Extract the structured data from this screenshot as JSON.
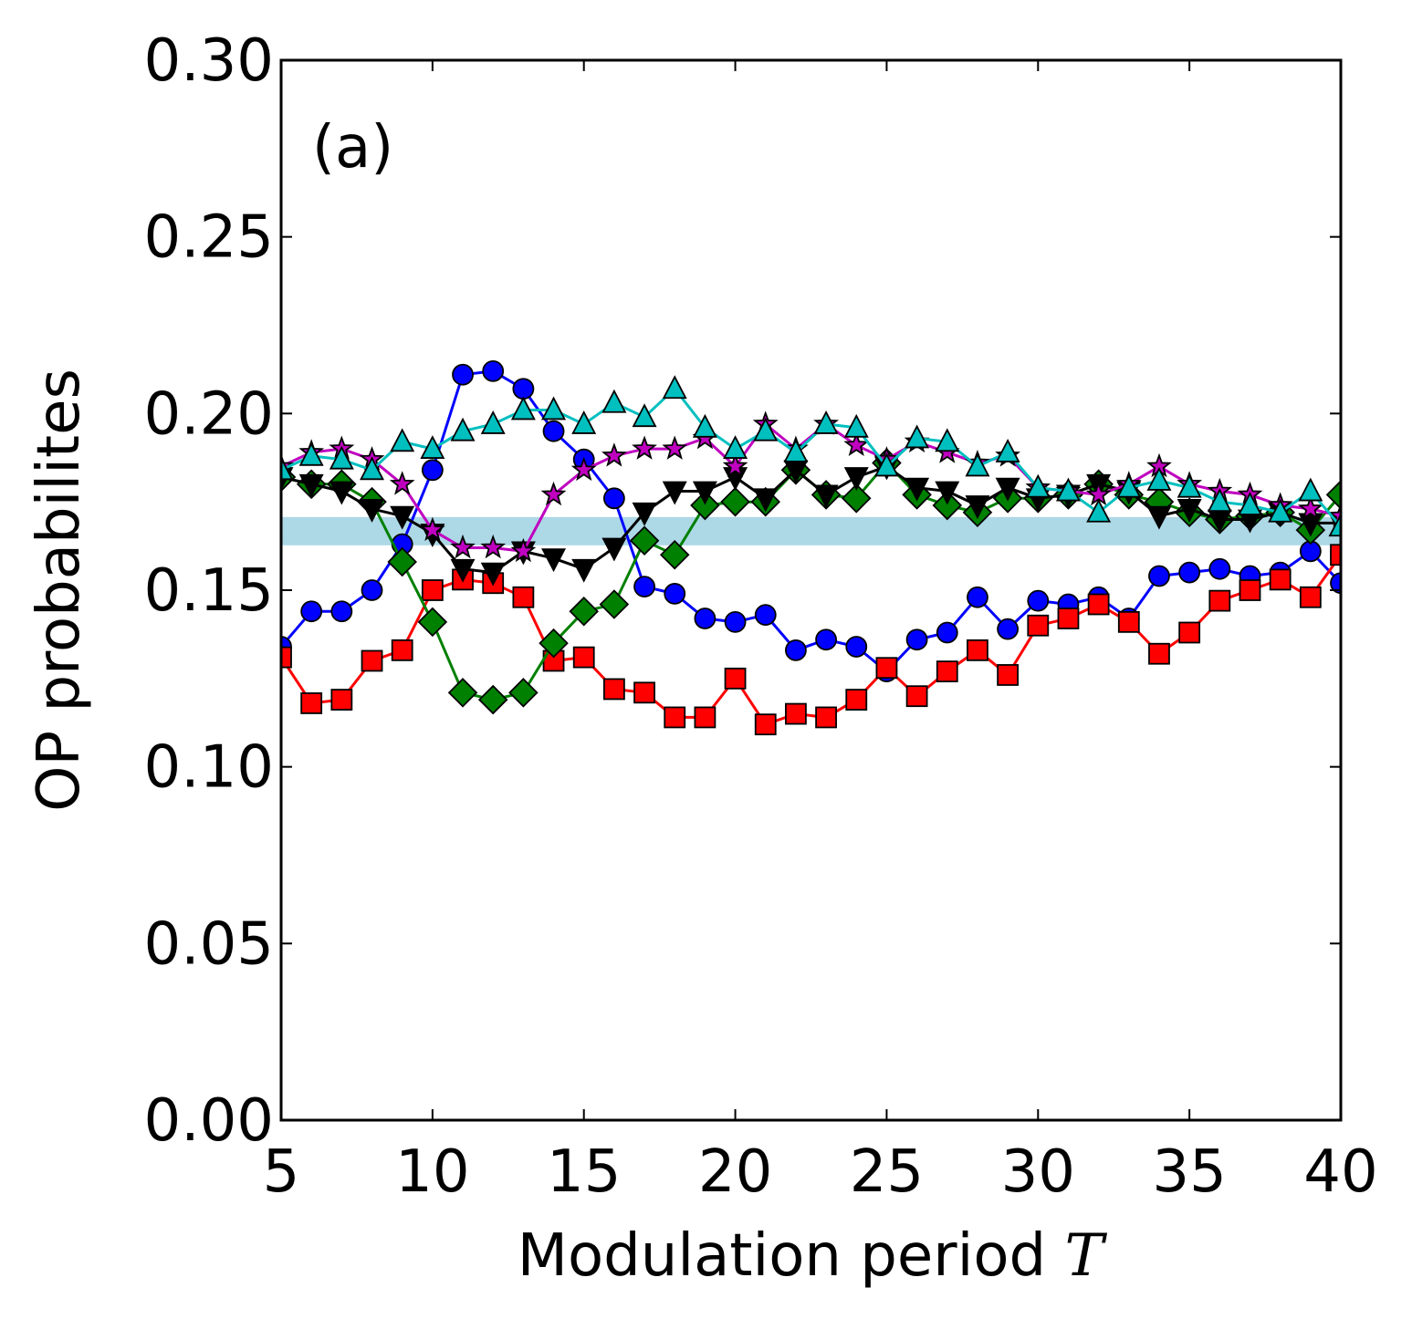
{
  "chart_data": {
    "type": "line",
    "panel_label": "(a)",
    "xlabel": "Modulation period",
    "xlabel_var": "T",
    "ylabel": "OP probabilites",
    "xlim": [
      5,
      40
    ],
    "ylim": [
      0,
      0.3
    ],
    "xticks": [
      5,
      10,
      15,
      20,
      25,
      30,
      35,
      40
    ],
    "xtick_labels": [
      "5",
      "10",
      "15",
      "20",
      "25",
      "30",
      "35",
      "40"
    ],
    "yticks": [
      0,
      0.05,
      0.1,
      0.15,
      0.2,
      0.25,
      0.3
    ],
    "ytick_labels": [
      "0.00",
      "0.05",
      "0.10",
      "0.15",
      "0.20",
      "0.25",
      "0.30"
    ],
    "grid": false,
    "band": {
      "ymin": 0.1627,
      "ymax": 0.1707,
      "color": "#add8e6"
    },
    "x": [
      5,
      6,
      7,
      8,
      9,
      10,
      11,
      12,
      13,
      14,
      15,
      16,
      17,
      18,
      19,
      20,
      21,
      22,
      23,
      24,
      25,
      26,
      27,
      28,
      29,
      30,
      31,
      32,
      33,
      34,
      35,
      36,
      37,
      38,
      39,
      40
    ],
    "series": [
      {
        "name": "blue-circle",
        "color": "#0000ff",
        "marker": "circle",
        "values": [
          0.134,
          0.144,
          0.144,
          0.15,
          0.163,
          0.184,
          0.211,
          0.212,
          0.207,
          0.195,
          0.187,
          0.176,
          0.151,
          0.149,
          0.142,
          0.141,
          0.143,
          0.133,
          0.136,
          0.134,
          0.127,
          0.136,
          0.138,
          0.148,
          0.139,
          0.147,
          0.146,
          0.148,
          0.142,
          0.154,
          0.155,
          0.156,
          0.154,
          0.155,
          0.161,
          0.152
        ]
      },
      {
        "name": "red-square",
        "color": "#ff0000",
        "marker": "square",
        "values": [
          0.131,
          0.118,
          0.119,
          0.13,
          0.133,
          0.15,
          0.153,
          0.152,
          0.148,
          0.13,
          0.131,
          0.122,
          0.121,
          0.114,
          0.114,
          0.125,
          0.112,
          0.115,
          0.114,
          0.119,
          0.128,
          0.12,
          0.127,
          0.133,
          0.126,
          0.14,
          0.142,
          0.146,
          0.141,
          0.132,
          0.138,
          0.147,
          0.15,
          0.153,
          0.148,
          0.16
        ]
      },
      {
        "name": "green-diamond",
        "color": "#008000",
        "marker": "diamond",
        "values": [
          0.182,
          0.18,
          0.18,
          0.175,
          0.158,
          0.141,
          0.121,
          0.119,
          0.121,
          0.135,
          0.144,
          0.146,
          0.164,
          0.16,
          0.174,
          0.175,
          0.175,
          0.184,
          0.177,
          0.176,
          0.186,
          0.177,
          0.174,
          0.172,
          0.176,
          0.176,
          0.177,
          0.18,
          0.177,
          0.175,
          0.172,
          0.17,
          0.171,
          0.172,
          0.167,
          0.177
        ]
      },
      {
        "name": "black-triangle-down",
        "color": "#000000",
        "marker": "triangle-down",
        "values": [
          0.182,
          0.18,
          0.178,
          0.173,
          0.171,
          0.166,
          0.156,
          0.155,
          0.161,
          0.159,
          0.156,
          0.162,
          0.172,
          0.178,
          0.178,
          0.182,
          0.176,
          0.184,
          0.177,
          0.182,
          0.185,
          0.179,
          0.178,
          0.174,
          0.179,
          0.176,
          0.177,
          0.18,
          0.178,
          0.171,
          0.173,
          0.17,
          0.17,
          0.172,
          0.169,
          0.169
        ]
      },
      {
        "name": "magenta-star",
        "color": "#bf00bf",
        "marker": "star",
        "values": [
          0.185,
          0.189,
          0.19,
          0.187,
          0.18,
          0.167,
          0.162,
          0.162,
          0.161,
          0.177,
          0.184,
          0.188,
          0.19,
          0.19,
          0.193,
          0.185,
          0.197,
          0.19,
          0.197,
          0.191,
          0.187,
          0.192,
          0.189,
          0.186,
          0.188,
          0.179,
          0.178,
          0.177,
          0.18,
          0.185,
          0.18,
          0.178,
          0.177,
          0.174,
          0.173,
          0.171
        ]
      },
      {
        "name": "cyan-triangle-up",
        "color": "#00bfbf",
        "marker": "triangle-up",
        "values": [
          0.184,
          0.188,
          0.187,
          0.184,
          0.192,
          0.19,
          0.195,
          0.197,
          0.201,
          0.201,
          0.197,
          0.203,
          0.199,
          0.207,
          0.196,
          0.19,
          0.195,
          0.189,
          0.197,
          0.196,
          0.185,
          0.193,
          0.192,
          0.185,
          0.189,
          0.179,
          0.178,
          0.172,
          0.179,
          0.181,
          0.179,
          0.175,
          0.174,
          0.172,
          0.178,
          0.168
        ]
      }
    ]
  }
}
